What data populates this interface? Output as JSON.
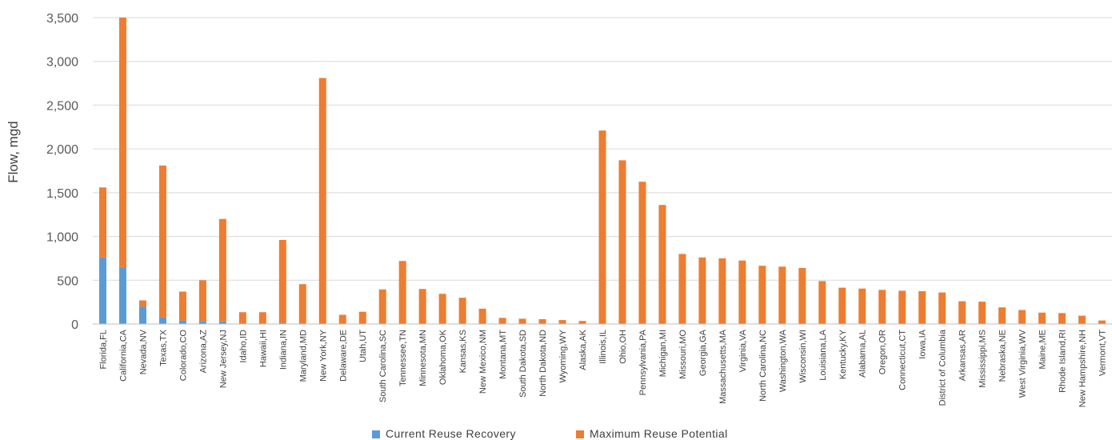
{
  "chart_data": {
    "type": "bar",
    "stacked": true,
    "ylabel": "Flow, mgd",
    "ylim": [
      0,
      3500
    ],
    "yticks": [
      0,
      500,
      1000,
      1500,
      2000,
      2500,
      3000,
      3500
    ],
    "ytick_labels": [
      "0",
      "500",
      "1,000",
      "1,500",
      "2,000",
      "2,500",
      "3,000",
      "3,500"
    ],
    "grid": true,
    "legend_position": "bottom",
    "categories": [
      "Florida,FL",
      "California,CA",
      "Nevada,NV",
      "Texas,TX",
      "Colorado,CO",
      "Arizona,AZ",
      "New Jersey,NJ",
      "Idaho,ID",
      "Hawaii,HI",
      "Indiana,IN",
      "Maryland,MD",
      "New York,NY",
      "Delaware,DE",
      "Utah,UT",
      "South Carolina,SC",
      "Tennessee,TN",
      "Minnesota,MN",
      "Oklahoma,OK",
      "Kansas,KS",
      "New Mexico,NM",
      "Montana,MT",
      "South Dakota,SD",
      "North Dakota,ND",
      "Wyoming,WY",
      "Alaska,AK",
      "Illinois,IL",
      "Ohio,OH",
      "Pennsylvania,PA",
      "Michigan,MI",
      "Missouri,MO",
      "Georgia,GA",
      "Massachusetts,MA",
      "Virginia,VA",
      "North Carolina,NC",
      "Washington,WA",
      "Wisconsin,WI",
      "Louisiana,LA",
      "Kentucky,KY",
      "Alabama,AL",
      "Oregon,OR",
      "Connecticut,CT",
      "Iowa,IA",
      "District of Columbia",
      "Arkansas,AR",
      "Mississippi,MS",
      "Nebraska,NE",
      "West Virginia,WV",
      "Maine,ME",
      "Rhode Island,RI",
      "New Hampshire,NH",
      "Vermont,VT"
    ],
    "series": [
      {
        "name": "Current Reuse Recovery",
        "color": "#5b9bd5",
        "values": [
          760,
          650,
          200,
          80,
          40,
          35,
          30,
          10,
          10,
          15,
          10,
          0,
          0,
          0,
          0,
          0,
          0,
          0,
          0,
          0,
          0,
          0,
          0,
          0,
          0,
          0,
          0,
          0,
          0,
          0,
          0,
          0,
          0,
          0,
          0,
          0,
          0,
          0,
          0,
          0,
          0,
          0,
          0,
          0,
          0,
          0,
          0,
          0,
          0,
          0,
          0
        ]
      },
      {
        "name": "Maximum Reuse Potential",
        "color": "#ed7d31",
        "values": [
          800,
          2850,
          70,
          1730,
          330,
          465,
          1170,
          125,
          125,
          945,
          445,
          2810,
          105,
          140,
          395,
          720,
          400,
          345,
          300,
          175,
          70,
          60,
          55,
          45,
          35,
          2210,
          1870,
          1625,
          1360,
          800,
          760,
          750,
          725,
          665,
          655,
          640,
          490,
          415,
          405,
          390,
          380,
          375,
          360,
          260,
          255,
          190,
          160,
          130,
          125,
          95,
          40
        ]
      }
    ]
  }
}
